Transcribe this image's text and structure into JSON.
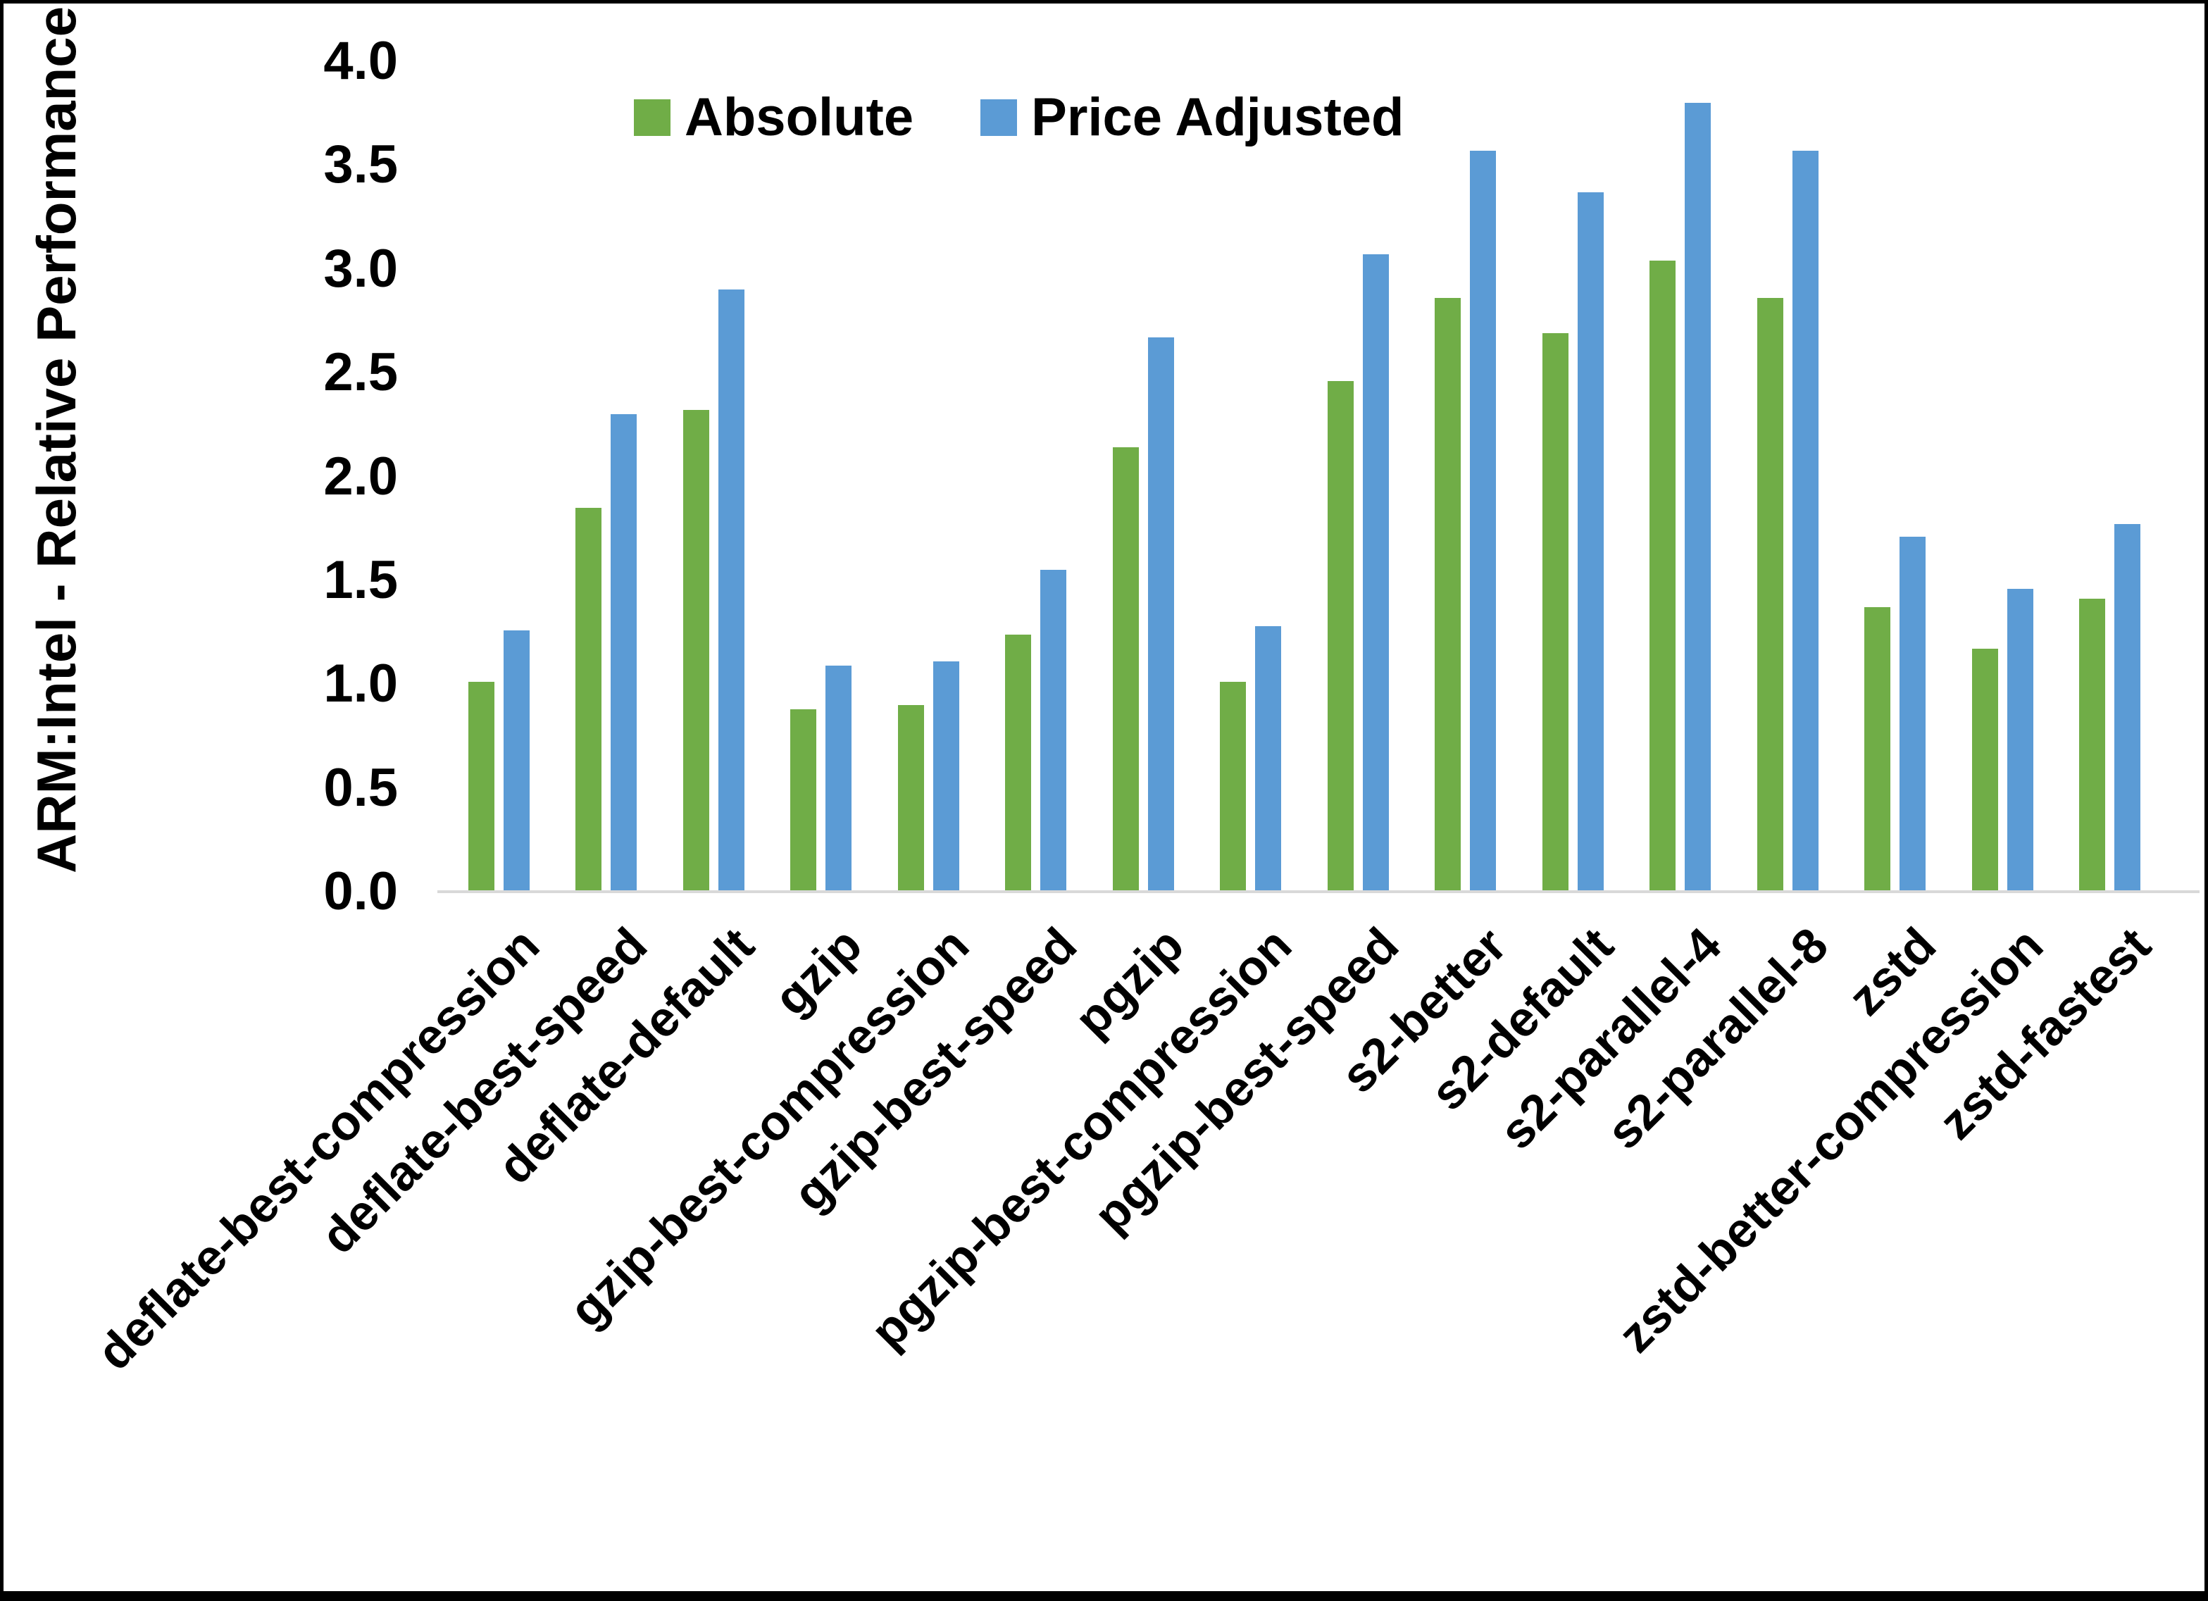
{
  "figure": {
    "background": "#ffffff",
    "border_color": "#000000",
    "axis_line_color": "#d9d9d9",
    "text_color": "#000000"
  },
  "chart_data": {
    "type": "bar",
    "title": "",
    "xlabel": "",
    "ylabel": "ARM:Intel - Relative Performance",
    "ylim": [
      0.0,
      4.0
    ],
    "ytick_step": 0.5,
    "ytick_labels": [
      "0.0",
      "0.5",
      "1.0",
      "1.5",
      "2.0",
      "2.5",
      "3.0",
      "3.5",
      "4.0"
    ],
    "grid": false,
    "legend_position": "top-center",
    "categories": [
      "deflate-best-compression",
      "deflate-best-speed",
      "deflate-default",
      "gzip",
      "gzip-best-compression",
      "gzip-best-speed",
      "pgzip",
      "pgzip-best-compression",
      "pgzip-best-speed",
      "s2-better",
      "s2-default",
      "s2-parallel-4",
      "s2-parallel-8",
      "zstd",
      "zstd-better-compression",
      "zstd-fastest"
    ],
    "series": [
      {
        "name": "Absolute",
        "color": "#70AD47",
        "values": [
          1.01,
          1.85,
          2.32,
          0.88,
          0.9,
          1.24,
          2.14,
          1.01,
          2.46,
          2.86,
          2.69,
          3.04,
          2.86,
          1.37,
          1.17,
          1.41
        ]
      },
      {
        "name": "Price Adjusted",
        "color": "#5B9BD5",
        "values": [
          1.26,
          2.3,
          2.9,
          1.09,
          1.11,
          1.55,
          2.67,
          1.28,
          3.07,
          3.57,
          3.37,
          3.8,
          3.57,
          1.71,
          1.46,
          1.77
        ]
      }
    ]
  }
}
